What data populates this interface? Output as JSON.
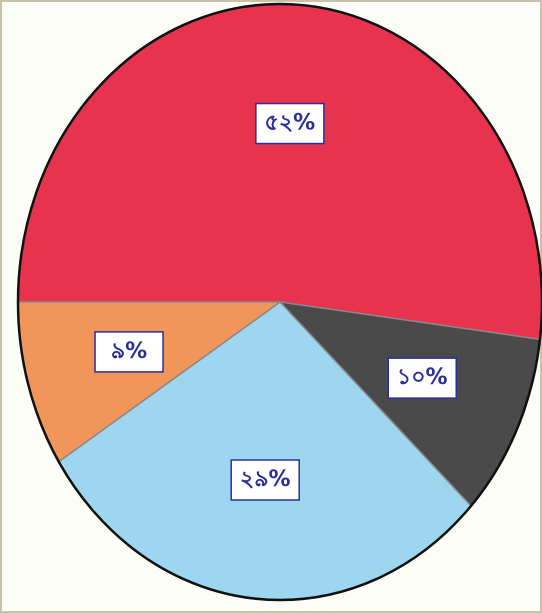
{
  "chart_data": {
    "type": "pie",
    "categories": [
      null,
      null,
      null,
      null
    ],
    "values": [
      52,
      10,
      29,
      9
    ],
    "value_labels": [
      "৫২%",
      "১০%",
      "২৯%",
      "৯%"
    ],
    "colors": [
      "#e8334f",
      "#4a4a4a",
      "#9fd6ef",
      "#f0965a"
    ]
  }
}
